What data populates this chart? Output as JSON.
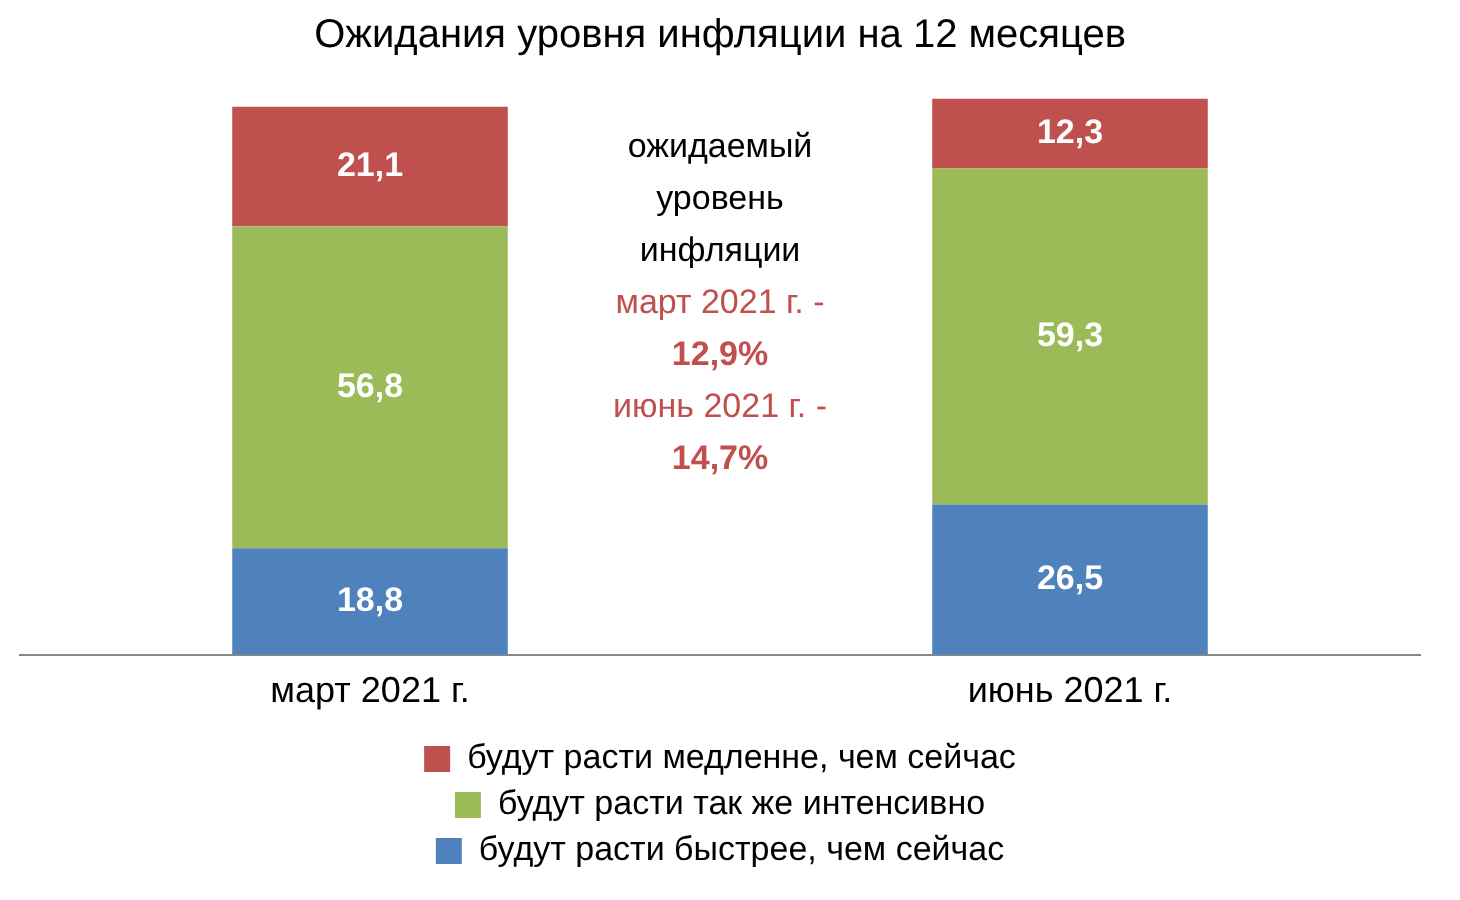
{
  "chart_data": {
    "type": "bar",
    "title": "Ожидания уровня инфляции на 12 месяцев",
    "categories": [
      "март 2021 г.",
      "июнь 2021 г."
    ],
    "stacked": true,
    "series": [
      {
        "name": "будут расти быстрее, чем сейчас",
        "color": "#4f81bd",
        "values": [
          18.8,
          26.5
        ],
        "value_labels": [
          "18,8",
          "26,5"
        ]
      },
      {
        "name": "будут расти так же интенсивно",
        "color": "#9bbb59",
        "values": [
          56.8,
          59.3
        ],
        "value_labels": [
          "56,8",
          "59,3"
        ]
      },
      {
        "name": "будут расти медленне, чем сейчас",
        "color": "#c0504d",
        "values": [
          21.1,
          12.3
        ],
        "value_labels": [
          "21,1",
          "12,3"
        ]
      }
    ],
    "legend": "bottom",
    "grid": false,
    "annotations": [
      "ожидаемый уровень инфляции",
      "март 2021 г. - 12,9%",
      "июнь 2021 г. - 14,7%"
    ]
  }
}
